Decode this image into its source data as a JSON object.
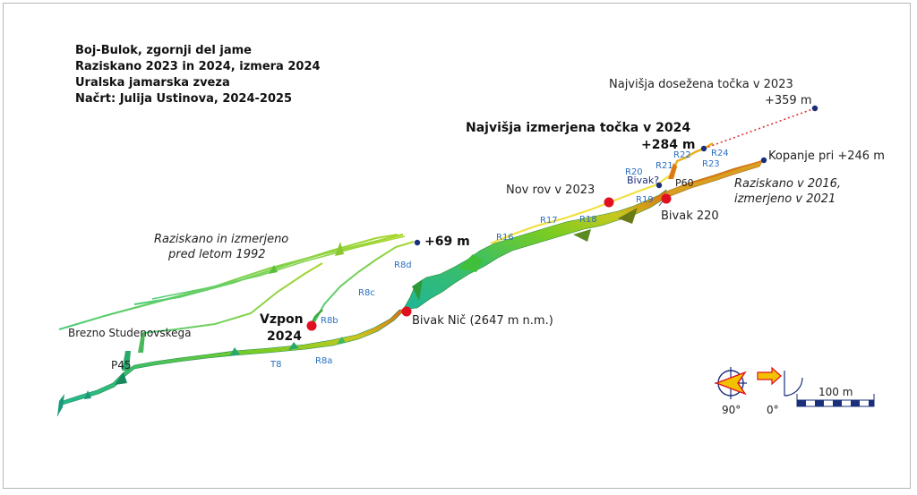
{
  "title_block": {
    "line1": "Boj-Bulok, zgornji del jame",
    "line2": "Raziskano 2023 in 2024, izmera 2024",
    "line3": "Uralska jamarska zveza",
    "line4": "Načrt: Julija Ustinova, 2024-2025"
  },
  "annotations": {
    "highest_2023_label": "Najvišja dosežena točka v 2023",
    "highest_2023_value": "+359 m",
    "highest_2024_label": "Najvišja izmerjena točka v 2024",
    "highest_2024_value": "+284 m",
    "digging": "Kopanje pri +246 m",
    "explored_2016_line1": "Raziskano v 2016,",
    "explored_2016_line2": "izmerjeno v 2021",
    "nov_rov": "Nov rov v 2023",
    "bivak_220": "Bivak 220",
    "bivak_q": "Bivak?",
    "p60": "P60",
    "old_line1": "Raziskano in izmerjeno",
    "old_line2": "pred letom 1992",
    "plus69": "+69 m",
    "vzpon_line1": "Vzpon",
    "vzpon_line2": "2024",
    "bivak_nic": "Bivak Nič (2647 m n.m.)",
    "brezno": "Brezno Studenovskega",
    "p45": "P45"
  },
  "station_labels": {
    "R24": "R24",
    "R22": "R22",
    "R23": "R23",
    "R21": "R21",
    "R20": "R20",
    "R19": "R19",
    "R18": "R18",
    "R17": "R17",
    "R16": "R16",
    "R8d": "R8d",
    "R8c": "R8c",
    "R8b": "R8b",
    "R8a": "R8a",
    "T8": "T8"
  },
  "legend": {
    "angle_plan": "90°",
    "angle_elev": "0°",
    "scale_label": "100 m"
  },
  "colors": {
    "background": "#ffffff",
    "station_label": "#2a70c0",
    "bivak_marker": "#e01020",
    "point_marker": "#1a2f7a",
    "scale_bar": "#1a2f7a"
  }
}
